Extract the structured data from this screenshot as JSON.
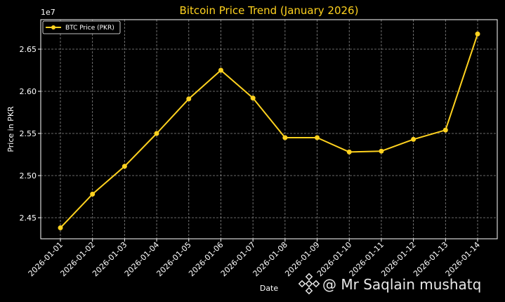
{
  "colors": {
    "background": "#000000",
    "series": "#ffd21f",
    "text": "#ffffff",
    "grid": "#8a8a8a"
  },
  "watermark": {
    "text": "@ Mr Saqlain mushatq",
    "icon": "binance-logo-icon"
  },
  "chart_data": {
    "type": "line",
    "title": "Bitcoin Price Trend (January 2026)",
    "xlabel": "Date",
    "ylabel": "Price in PKR",
    "offset_label": "1e7",
    "grid": true,
    "legend_position": "top-left",
    "ylim": [
      2.425,
      2.685
    ],
    "yticks": [
      2.45,
      2.5,
      2.55,
      2.6,
      2.65
    ],
    "ytick_labels": [
      "2.45",
      "2.50",
      "2.55",
      "2.60",
      "2.65"
    ],
    "categories": [
      "2026-01-01",
      "2026-01-02",
      "2026-01-03",
      "2026-01-04",
      "2026-01-05",
      "2026-01-06",
      "2026-01-07",
      "2026-01-08",
      "2026-01-09",
      "2026-01-10",
      "2026-01-11",
      "2026-01-12",
      "2026-01-13",
      "2026-01-14"
    ],
    "series": [
      {
        "name": "BTC Price (PKR)",
        "values": [
          2.438,
          2.478,
          2.511,
          2.55,
          2.591,
          2.625,
          2.592,
          2.545,
          2.545,
          2.528,
          2.529,
          2.543,
          2.554,
          2.668
        ]
      }
    ]
  }
}
